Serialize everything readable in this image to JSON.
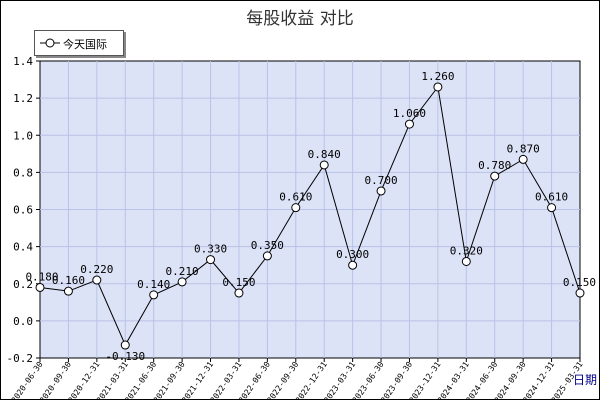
{
  "chart_data": {
    "type": "line",
    "title": "每股收益  对比",
    "xlabel": "日期",
    "ylabel": "",
    "ylim": [
      -0.2,
      1.4
    ],
    "yticks": [
      -0.2,
      0.0,
      0.2,
      0.4,
      0.6,
      0.8,
      1.0,
      1.2,
      1.4
    ],
    "ytick_labels": [
      "-0.2",
      "0.0",
      "0.2",
      "0.4",
      "0.6",
      "0.8",
      "1.0",
      "1.2",
      "1.4"
    ],
    "grid": true,
    "legend_position": "top-left",
    "colors": {
      "plot_bg": "#dde3f7",
      "grid": "#b8c2e6",
      "line": "#000000",
      "marker_fill": "#ffffff"
    },
    "categories": [
      "2020-06-30",
      "2020-09-30",
      "2020-12-31",
      "2021-03-31",
      "2021-06-30",
      "2021-09-30",
      "2021-12-31",
      "2022-03-31",
      "2022-06-30",
      "2022-09-30",
      "2022-12-31",
      "2023-03-31",
      "2023-06-30",
      "2023-09-30",
      "2023-12-31",
      "2024-03-31",
      "2024-06-30",
      "2024-09-30",
      "2024-12-31",
      "2025-03-31"
    ],
    "series": [
      {
        "name": "今天国际",
        "values": [
          0.18,
          0.16,
          0.22,
          -0.13,
          0.14,
          0.21,
          0.33,
          0.15,
          0.35,
          0.61,
          0.84,
          0.3,
          0.7,
          1.06,
          1.26,
          0.32,
          0.78,
          0.87,
          0.61,
          0.15
        ],
        "labels": [
          "0.180",
          "0.160",
          "0.220",
          "-0.130",
          "0.140",
          "0.210",
          "0.330",
          "0.150",
          "0.350",
          "0.610",
          "0.840",
          "0.300",
          "0.700",
          "1.060",
          "1.260",
          "0.320",
          "0.780",
          "0.870",
          "0.610",
          "0.150"
        ]
      }
    ]
  }
}
